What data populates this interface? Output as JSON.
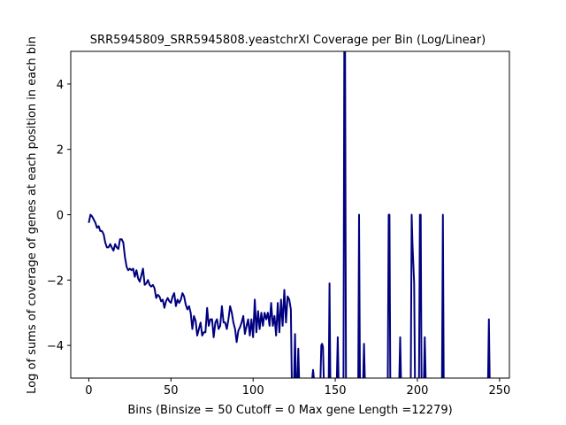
{
  "chart_data": {
    "type": "line",
    "title": "SRR5945809_SRR5945808.yeastchrXI Coverage per Bin (Log/Linear)",
    "xlabel": "Bins  (Binsize = 50 Cutoff = 0 Max gene Length =12279)",
    "ylabel": "Log of sums of coverage of genes at each position in each bin",
    "xlim": [
      -11,
      256
    ],
    "ylim": [
      -5,
      5
    ],
    "xticks": [
      0,
      50,
      100,
      150,
      200,
      250
    ],
    "yticks": [
      -4,
      -2,
      0,
      2,
      4
    ],
    "grid": false,
    "line_color": "#000080",
    "segments": [
      [
        [
          0,
          -0.25
        ],
        [
          1,
          0
        ],
        [
          2,
          -0.05
        ],
        [
          3,
          -0.15
        ],
        [
          4,
          -0.25
        ],
        [
          5,
          -0.4
        ],
        [
          6,
          -0.35
        ],
        [
          7,
          -0.5
        ],
        [
          8,
          -0.5
        ],
        [
          9,
          -0.6
        ],
        [
          10,
          -0.85
        ],
        [
          11,
          -1.0
        ],
        [
          12,
          -1.0
        ],
        [
          13,
          -0.9
        ],
        [
          14,
          -1.0
        ],
        [
          15,
          -1.1
        ],
        [
          16,
          -0.9
        ],
        [
          17,
          -1.0
        ],
        [
          18,
          -1.05
        ],
        [
          19,
          -0.75
        ],
        [
          20,
          -0.75
        ],
        [
          21,
          -0.85
        ],
        [
          22,
          -1.3
        ],
        [
          23,
          -1.6
        ],
        [
          24,
          -1.7
        ],
        [
          25,
          -1.65
        ],
        [
          26,
          -1.7
        ],
        [
          27,
          -1.65
        ],
        [
          28,
          -1.9
        ],
        [
          29,
          -1.7
        ],
        [
          30,
          -1.95
        ],
        [
          31,
          -2.05
        ],
        [
          32,
          -1.85
        ],
        [
          33,
          -1.65
        ],
        [
          34,
          -2.15
        ],
        [
          35,
          -2.1
        ],
        [
          36,
          -2.0
        ],
        [
          37,
          -2.15
        ],
        [
          38,
          -2.2
        ],
        [
          39,
          -2.15
        ],
        [
          40,
          -2.25
        ],
        [
          41,
          -2.55
        ],
        [
          42,
          -2.45
        ],
        [
          43,
          -2.5
        ],
        [
          44,
          -2.65
        ],
        [
          45,
          -2.6
        ],
        [
          46,
          -2.85
        ],
        [
          47,
          -2.65
        ],
        [
          48,
          -2.55
        ],
        [
          49,
          -2.65
        ],
        [
          50,
          -2.7
        ],
        [
          51,
          -2.5
        ],
        [
          52,
          -2.4
        ],
        [
          53,
          -2.8
        ],
        [
          54,
          -2.6
        ],
        [
          55,
          -2.7
        ],
        [
          56,
          -2.6
        ],
        [
          57,
          -2.4
        ],
        [
          58,
          -2.5
        ],
        [
          59,
          -2.75
        ],
        [
          60,
          -2.9
        ],
        [
          61,
          -2.8
        ],
        [
          62,
          -3.0
        ],
        [
          63,
          -3.5
        ],
        [
          64,
          -3.1
        ],
        [
          65,
          -3.25
        ],
        [
          66,
          -3.7
        ],
        [
          67,
          -3.5
        ],
        [
          68,
          -3.3
        ],
        [
          69,
          -3.7
        ],
        [
          70,
          -3.6
        ],
        [
          71,
          -3.6
        ],
        [
          72,
          -2.85
        ],
        [
          73,
          -3.4
        ],
        [
          74,
          -3.2
        ],
        [
          75,
          -3.2
        ],
        [
          76,
          -3.75
        ],
        [
          77,
          -3.3
        ],
        [
          78,
          -3.2
        ],
        [
          79,
          -3.5
        ],
        [
          80,
          -3.4
        ],
        [
          81,
          -2.8
        ],
        [
          82,
          -3.3
        ],
        [
          83,
          -3.3
        ],
        [
          84,
          -3.5
        ],
        [
          85,
          -3.2
        ],
        [
          86,
          -2.8
        ],
        [
          87,
          -3.0
        ],
        [
          88,
          -3.3
        ],
        [
          89,
          -3.5
        ],
        [
          90,
          -3.9
        ],
        [
          91,
          -3.55
        ],
        [
          92,
          -3.45
        ],
        [
          93,
          -3.3
        ],
        [
          94,
          -3.1
        ],
        [
          95,
          -3.65
        ],
        [
          96,
          -3.4
        ],
        [
          97,
          -3.2
        ],
        [
          98,
          -3.7
        ],
        [
          99,
          -3.2
        ],
        [
          100,
          -3.75
        ],
        [
          101,
          -2.6
        ],
        [
          102,
          -3.6
        ],
        [
          103,
          -2.95
        ],
        [
          104,
          -3.5
        ],
        [
          105,
          -3.0
        ],
        [
          106,
          -3.4
        ],
        [
          107,
          -3.0
        ],
        [
          108,
          -3.2
        ],
        [
          109,
          -3.0
        ],
        [
          110,
          -3.4
        ],
        [
          111,
          -2.7
        ],
        [
          112,
          -3.4
        ],
        [
          113,
          -3.1
        ],
        [
          114,
          -3.7
        ],
        [
          115,
          -2.7
        ],
        [
          116,
          -3.6
        ],
        [
          117,
          -2.6
        ],
        [
          118,
          -3.4
        ],
        [
          119,
          -2.3
        ],
        [
          120,
          -3.3
        ],
        [
          121,
          -2.5
        ],
        [
          122,
          -2.6
        ],
        [
          123,
          -2.9
        ],
        [
          123.5,
          -5
        ]
      ],
      [
        [
          125,
          -5
        ],
        [
          125.5,
          -3.65
        ],
        [
          126,
          -5
        ]
      ],
      [
        [
          127,
          -5
        ],
        [
          127.5,
          -4.1
        ],
        [
          128,
          -5
        ]
      ],
      [
        [
          136,
          -5
        ],
        [
          136.5,
          -4.75
        ],
        [
          137,
          -5
        ]
      ],
      [
        [
          141,
          -5
        ],
        [
          141.5,
          -4.0
        ],
        [
          142,
          -3.95
        ],
        [
          142.5,
          -4.05
        ],
        [
          143,
          -5
        ]
      ],
      [
        [
          146,
          -5
        ],
        [
          146.5,
          -2.1
        ],
        [
          147,
          -5
        ]
      ],
      [
        [
          151,
          -5
        ],
        [
          151.5,
          -3.75
        ],
        [
          152,
          -5
        ]
      ],
      [
        [
          155,
          -5
        ],
        [
          155.5,
          5.0
        ],
        [
          156,
          5.0
        ],
        [
          156.5,
          -5
        ]
      ],
      [
        [
          164,
          -5
        ],
        [
          164.5,
          0
        ],
        [
          165,
          -5
        ]
      ],
      [
        [
          167,
          -5
        ],
        [
          167.5,
          -3.95
        ],
        [
          168,
          -5
        ]
      ],
      [
        [
          182,
          -5
        ],
        [
          182.5,
          0
        ],
        [
          183,
          0
        ],
        [
          183.5,
          -5
        ]
      ],
      [
        [
          189,
          -5
        ],
        [
          189.5,
          -3.75
        ],
        [
          190,
          -5
        ]
      ],
      [
        [
          196,
          -5
        ],
        [
          196.5,
          0
        ],
        [
          197,
          -0.9
        ],
        [
          198,
          -2.1
        ],
        [
          198.5,
          -5
        ]
      ],
      [
        [
          201,
          -5
        ],
        [
          201.5,
          0
        ],
        [
          202,
          0
        ],
        [
          202.5,
          -5
        ]
      ],
      [
        [
          204,
          -5
        ],
        [
          204.5,
          -3.75
        ],
        [
          205,
          -5
        ]
      ],
      [
        [
          215,
          -5
        ],
        [
          215.5,
          0
        ],
        [
          216,
          -5
        ]
      ],
      [
        [
          243,
          -5
        ],
        [
          243.5,
          -3.2
        ],
        [
          244,
          -5
        ]
      ]
    ]
  }
}
